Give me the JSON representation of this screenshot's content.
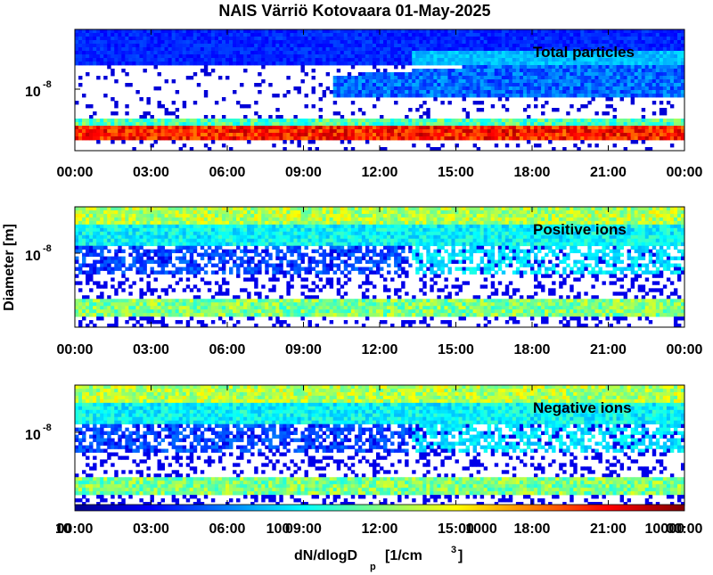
{
  "title": "NAIS Värriö Kotovaara 01-May-2025",
  "y_axis_label": "Diameter [m]",
  "colorbar": {
    "label_main": "dN/dlogD",
    "label_sub": "p",
    "label_unit": "[1/cm",
    "label_unit_exp": "3",
    "label_close": "]",
    "tick_labels": [
      "10",
      "100",
      "1000",
      "10000"
    ],
    "colormap": [
      "#00008f",
      "#0000ff",
      "#0080ff",
      "#00ffff",
      "#80ff80",
      "#ffff00",
      "#ff8000",
      "#ff0000",
      "#800000"
    ]
  },
  "chart_data": [
    {
      "type": "heatmap",
      "label": "Total particles",
      "x_ticks": [
        "00:00",
        "03:00",
        "06:00",
        "09:00",
        "12:00",
        "15:00",
        "18:00",
        "21:00",
        "00:00"
      ],
      "x_range": [
        "00:00",
        "24:00"
      ],
      "y_scale": "log",
      "y_tick_label_base": "10",
      "y_tick_label_exp": "-8"
    },
    {
      "type": "heatmap",
      "label": "Positive ions",
      "x_ticks": [
        "00:00",
        "03:00",
        "06:00",
        "09:00",
        "12:00",
        "15:00",
        "18:00",
        "21:00",
        "00:00"
      ],
      "x_range": [
        "00:00",
        "24:00"
      ],
      "y_scale": "log",
      "y_tick_label_base": "10",
      "y_tick_label_exp": "-8"
    },
    {
      "type": "heatmap",
      "label": "Negative ions",
      "x_ticks": [
        "00:00",
        "03:00",
        "06:00",
        "09:00",
        "12:00",
        "15:00",
        "18:00",
        "21:00",
        "00:00"
      ],
      "x_range": [
        "00:00",
        "24:00"
      ],
      "y_scale": "log",
      "y_tick_label_base": "10",
      "y_tick_label_exp": "-8"
    }
  ]
}
